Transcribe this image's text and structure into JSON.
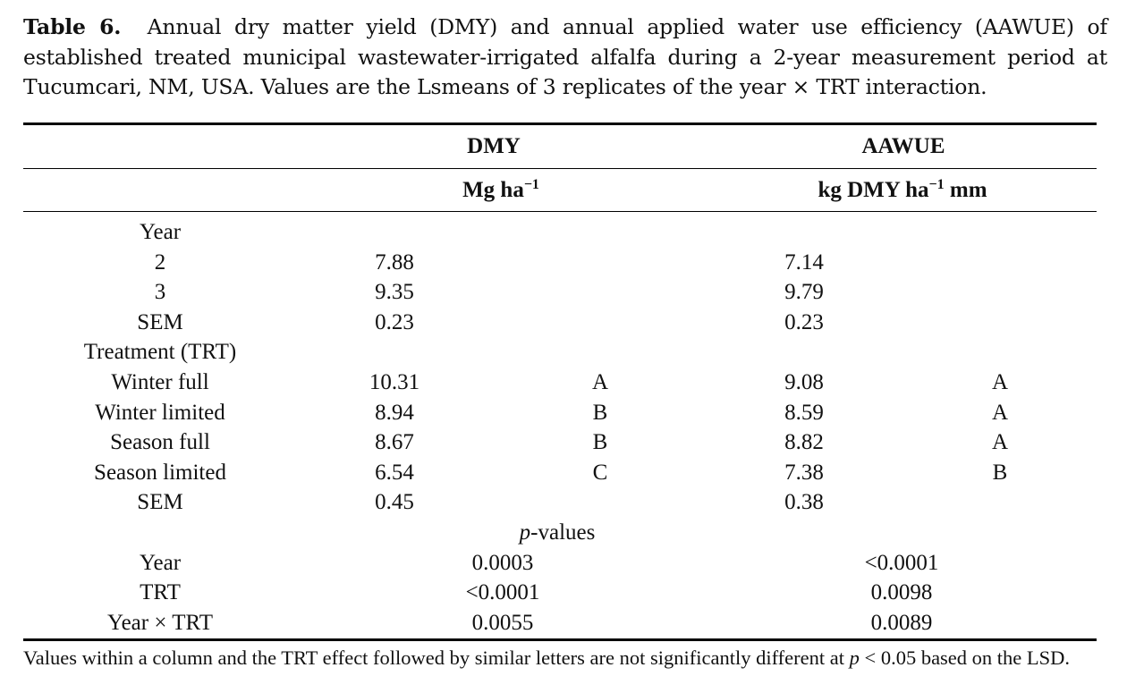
{
  "caption": {
    "label": "Table 6.",
    "text": "Annual dry matter yield (DMY) and annual applied water use efficiency (AAWUE) of established treated municipal wastewater-irrigated alfalfa during a 2-year measurement period at Tucumcari, NM, USA. Values are the Lsmeans of 3 replicates of the year × TRT interaction."
  },
  "header": {
    "dmy": "DMY",
    "aawue": "AAWUE",
    "dmy_unit_base": "Mg ha",
    "dmy_unit_exp": "−1",
    "aawue_unit_base": "kg DMY ha",
    "aawue_unit_exp": "−1",
    "aawue_unit_tail": " mm"
  },
  "sections": {
    "year": "Year",
    "treatment": "Treatment (TRT)",
    "pvalues_italic": "p",
    "pvalues_rest": "-values"
  },
  "year_rows": [
    {
      "label": "2",
      "dmy": "7.88",
      "aawue": "7.14"
    },
    {
      "label": "3",
      "dmy": "9.35",
      "aawue": "9.79"
    },
    {
      "label": "SEM",
      "dmy": "0.23",
      "aawue": "0.23"
    }
  ],
  "trt_rows": [
    {
      "label": "Winter full",
      "dmy": "10.31",
      "dmy_letter": "A",
      "aawue": "9.08",
      "aawue_letter": "A"
    },
    {
      "label": "Winter limited",
      "dmy": "8.94",
      "dmy_letter": "B",
      "aawue": "8.59",
      "aawue_letter": "A"
    },
    {
      "label": "Season full",
      "dmy": "8.67",
      "dmy_letter": "B",
      "aawue": "8.82",
      "aawue_letter": "A"
    },
    {
      "label": "Season limited",
      "dmy": "6.54",
      "dmy_letter": "C",
      "aawue": "7.38",
      "aawue_letter": "B"
    },
    {
      "label": "SEM",
      "dmy": "0.45",
      "dmy_letter": "",
      "aawue": "0.38",
      "aawue_letter": ""
    }
  ],
  "p_rows": [
    {
      "label": "Year",
      "dmy": "0.0003",
      "aawue": "<0.0001"
    },
    {
      "label": "TRT",
      "dmy": "<0.0001",
      "aawue": "0.0098"
    },
    {
      "label": "Year × TRT",
      "dmy": "0.0055",
      "aawue": "0.0089"
    }
  ],
  "footnote": {
    "text_before": "Values within a column and the TRT effect followed by similar letters are not significantly different at ",
    "p": "p",
    "text_after": " < 0.05 based on the LSD."
  }
}
